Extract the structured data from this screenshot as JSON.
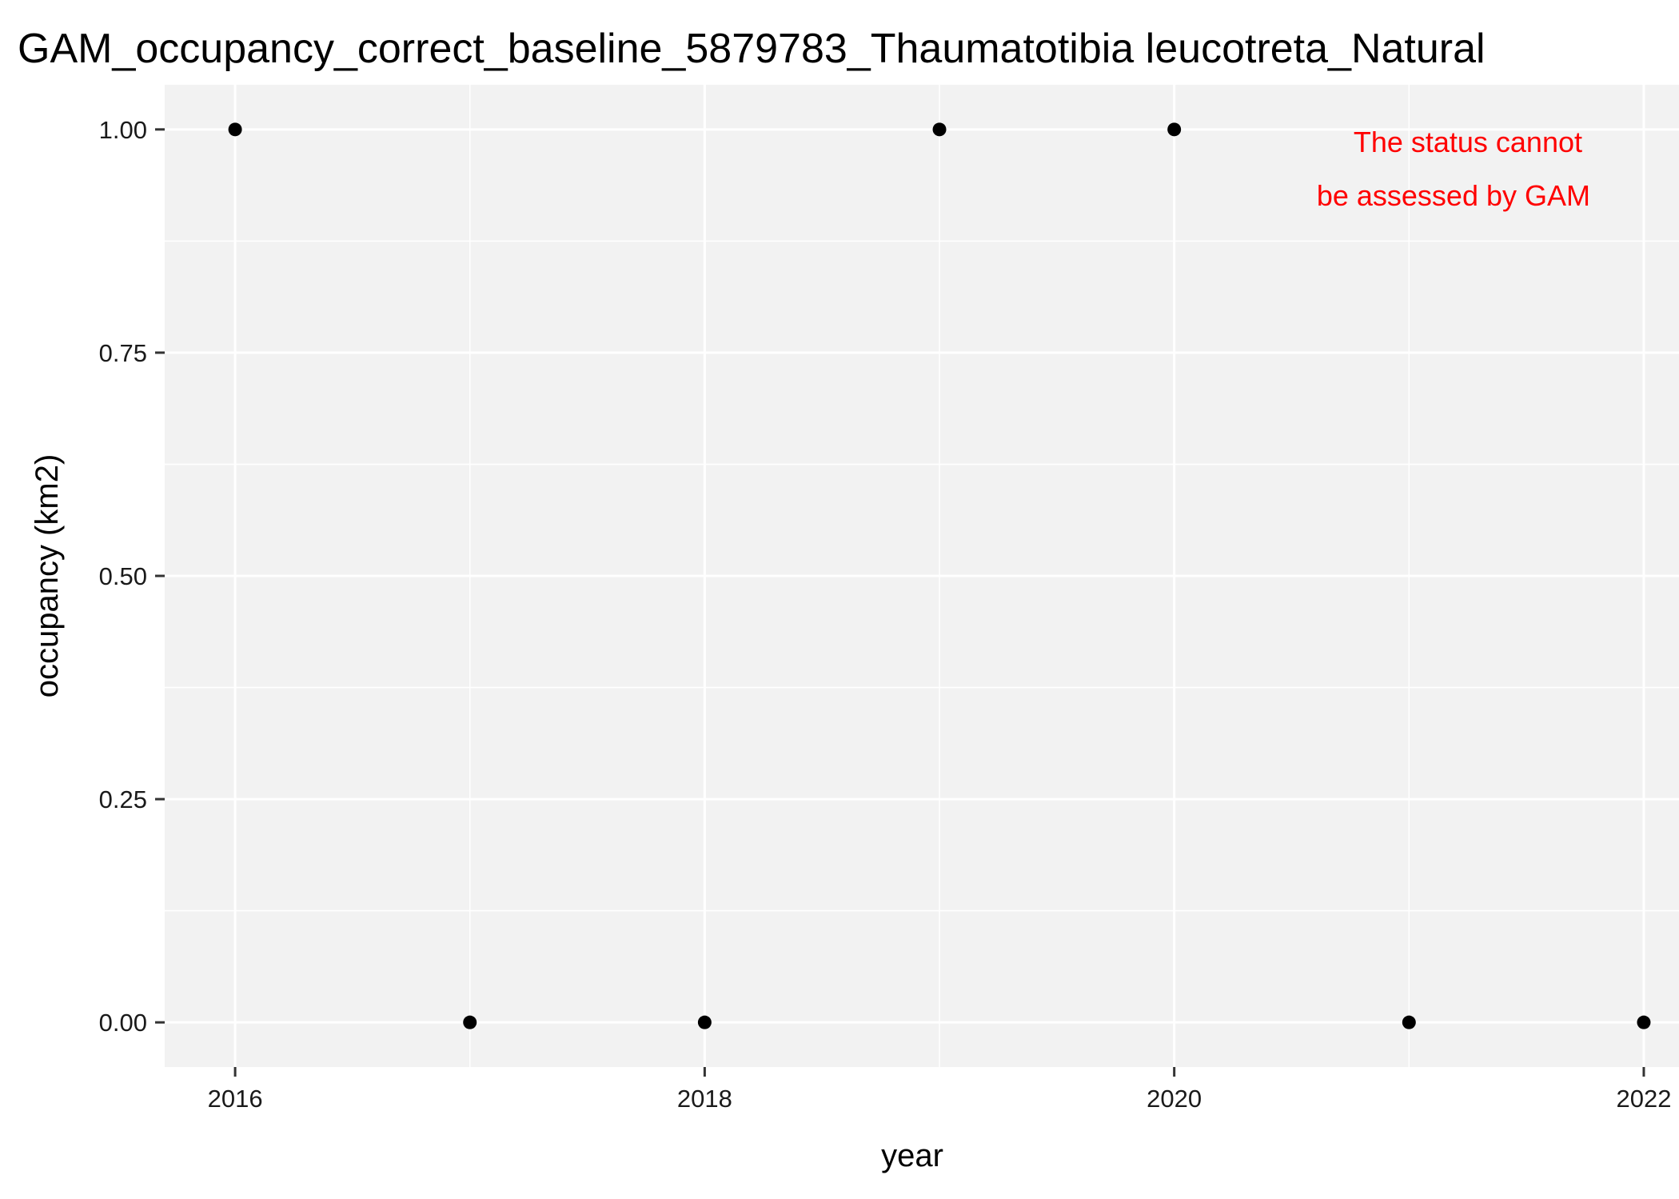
{
  "chart_data": {
    "type": "scatter",
    "title": "GAM_occupancy_correct_baseline_5879783_Thaumatotibia leucotreta_Natural",
    "xlabel": "year",
    "ylabel": "occupancy (km2)",
    "x": [
      2016,
      2017,
      2018,
      2019,
      2020,
      2021,
      2022
    ],
    "y": [
      1,
      0,
      0,
      1,
      1,
      0,
      0
    ],
    "xlim": [
      2015.7,
      2022.15
    ],
    "ylim": [
      -0.05,
      1.05
    ],
    "x_ticks": [
      2016,
      2018,
      2020,
      2022
    ],
    "x_tick_labels": [
      "2016",
      "2018",
      "2020",
      "2022"
    ],
    "y_ticks": [
      0,
      0.25,
      0.5,
      0.75,
      1
    ],
    "y_tick_labels": [
      "0.00",
      "0.25",
      "0.50",
      "0.75",
      "1.00"
    ],
    "grid": true,
    "annotation": [
      "The status cannot",
      "be assessed by GAM"
    ],
    "colors": {
      "panel": "#f2f2f2",
      "grid": "#ffffff",
      "point": "#000000",
      "annotation": "#ff0000"
    }
  }
}
